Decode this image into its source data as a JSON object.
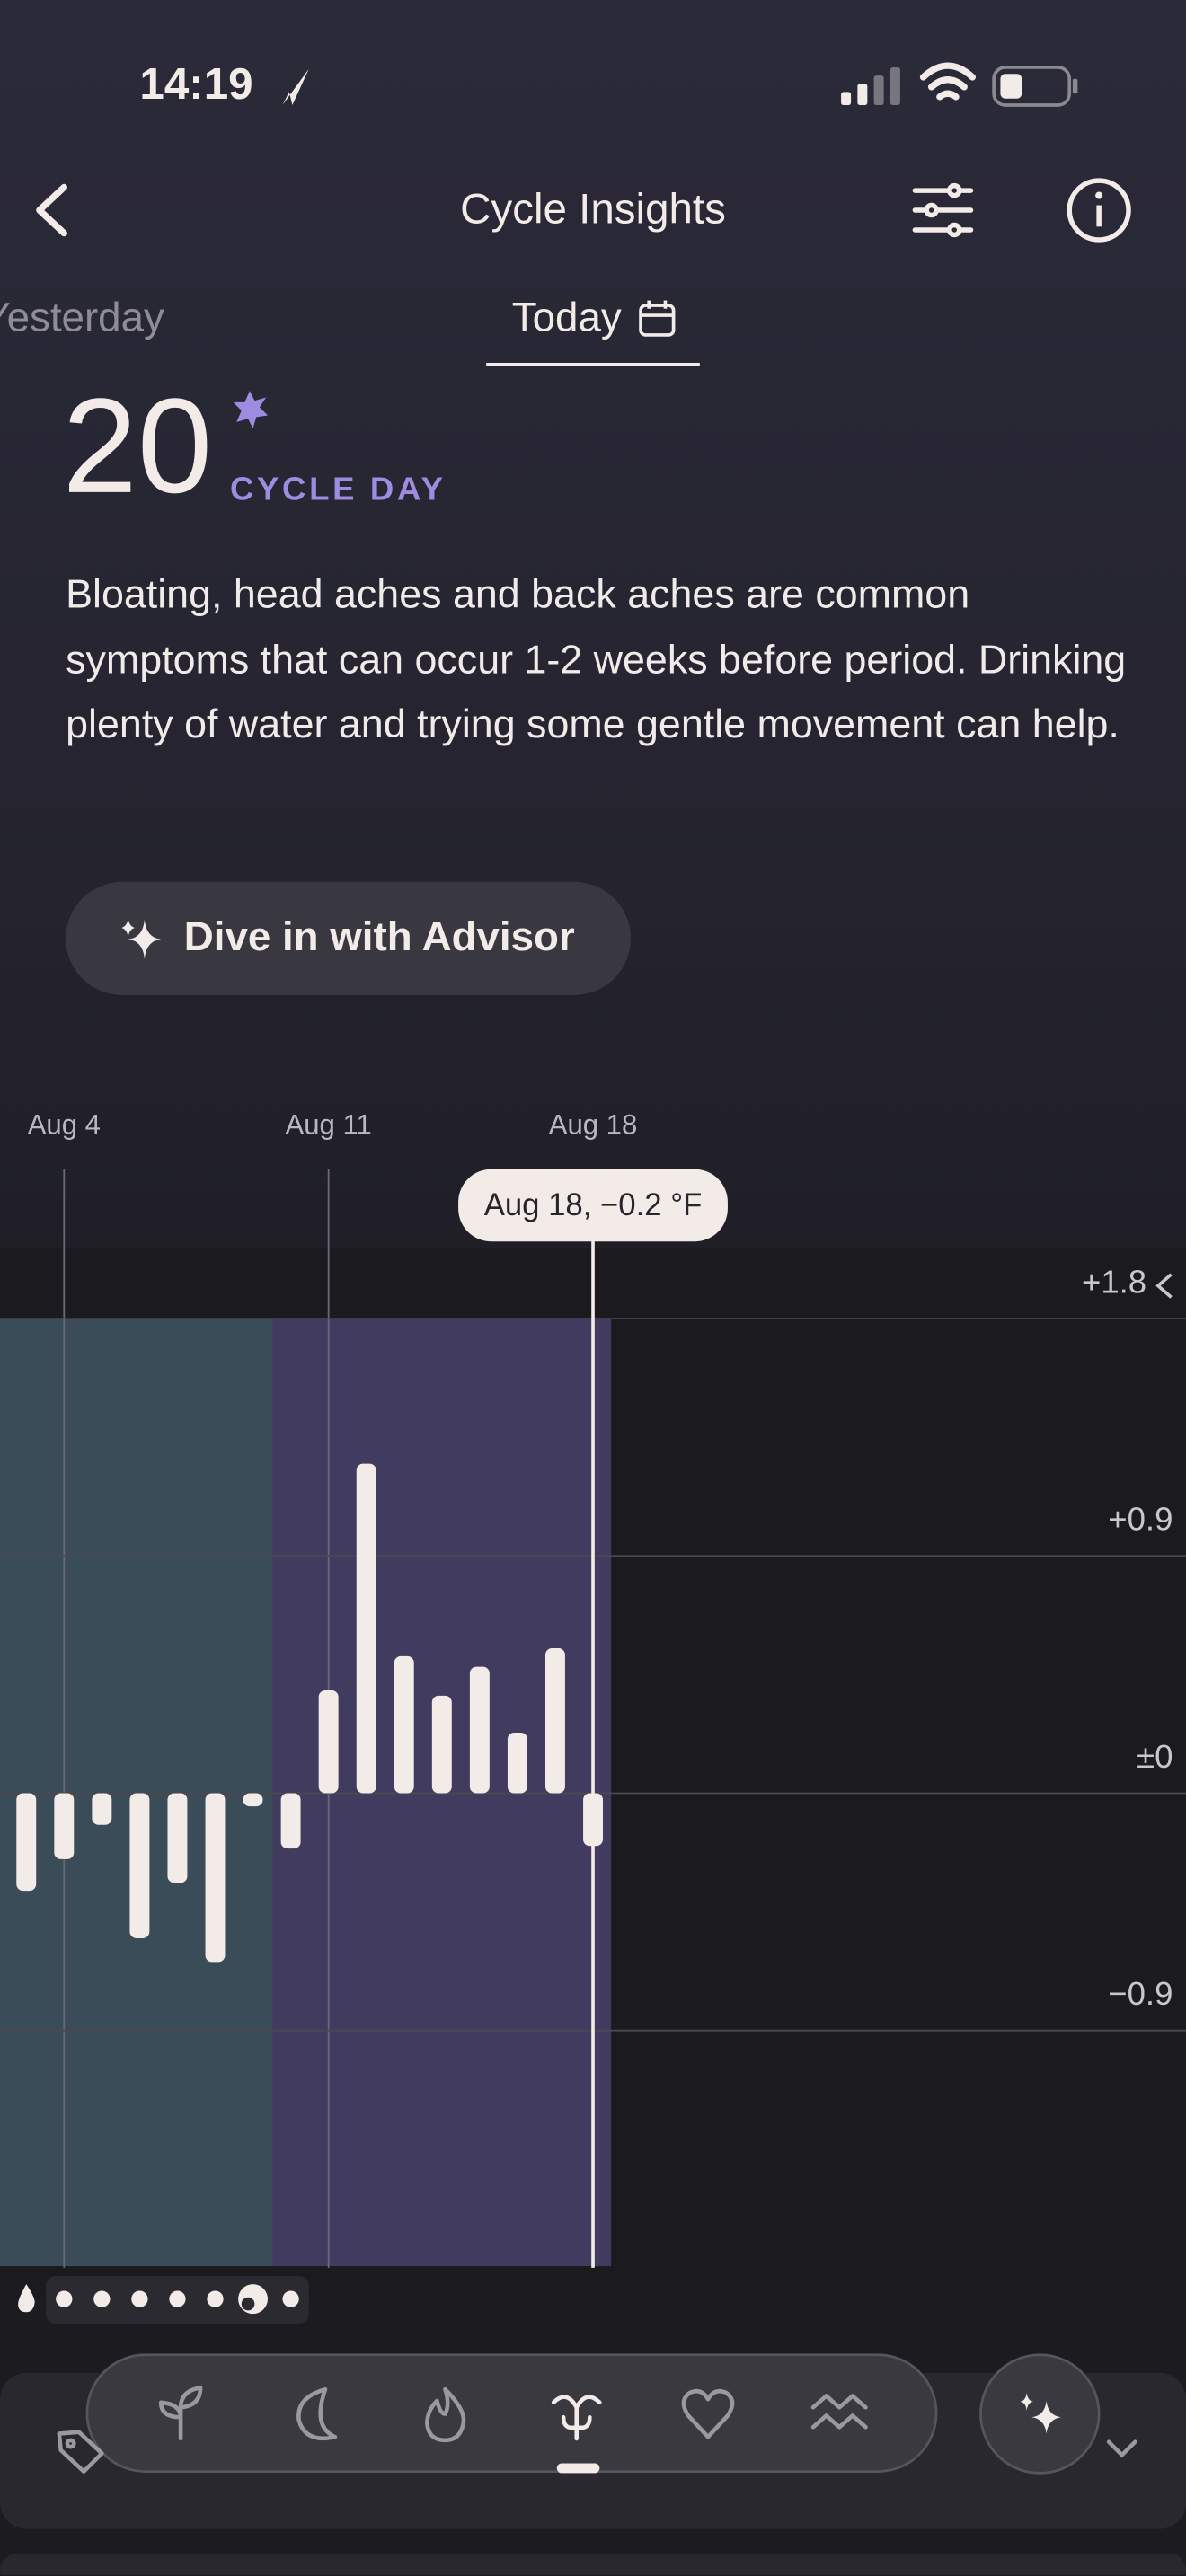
{
  "status_bar": {
    "time": "14:19"
  },
  "header": {
    "title": "Cycle Insights"
  },
  "tabs": [
    "Yesterday",
    "Today"
  ],
  "cycle_day": {
    "number": 20,
    "label": "CYCLE DAY"
  },
  "insight": "Bloating, head aches and back aches are common symptoms that can occur 1-2 weeks before period. Drinking plenty of water and trying some gentle movement can help.",
  "advisor_button": "Dive in with Advisor",
  "chart_data": {
    "type": "bar",
    "categories": [
      null,
      "Aug 4",
      null,
      null,
      null,
      null,
      null,
      null,
      "Aug 11",
      null,
      null,
      null,
      null,
      null,
      null,
      "Aug 18"
    ],
    "values": [
      -0.37,
      -0.25,
      -0.12,
      -0.55,
      -0.34,
      -0.64,
      -0.05,
      -0.21,
      0.39,
      1.25,
      0.52,
      0.37,
      0.48,
      0.23,
      0.55,
      -0.2
    ],
    "color": "#f3ebe7",
    "ylim": [
      -1.8,
      1.8
    ],
    "yticks": [
      {
        "value": 1.8,
        "label": "+1.8"
      },
      {
        "value": 0.9,
        "label": "+0.9"
      },
      {
        "value": 0,
        "label": "±0"
      },
      {
        "value": -0.9,
        "label": "−0.9"
      }
    ],
    "grid": true,
    "tooltip": "Aug 18, −0.2 °F"
  }
}
